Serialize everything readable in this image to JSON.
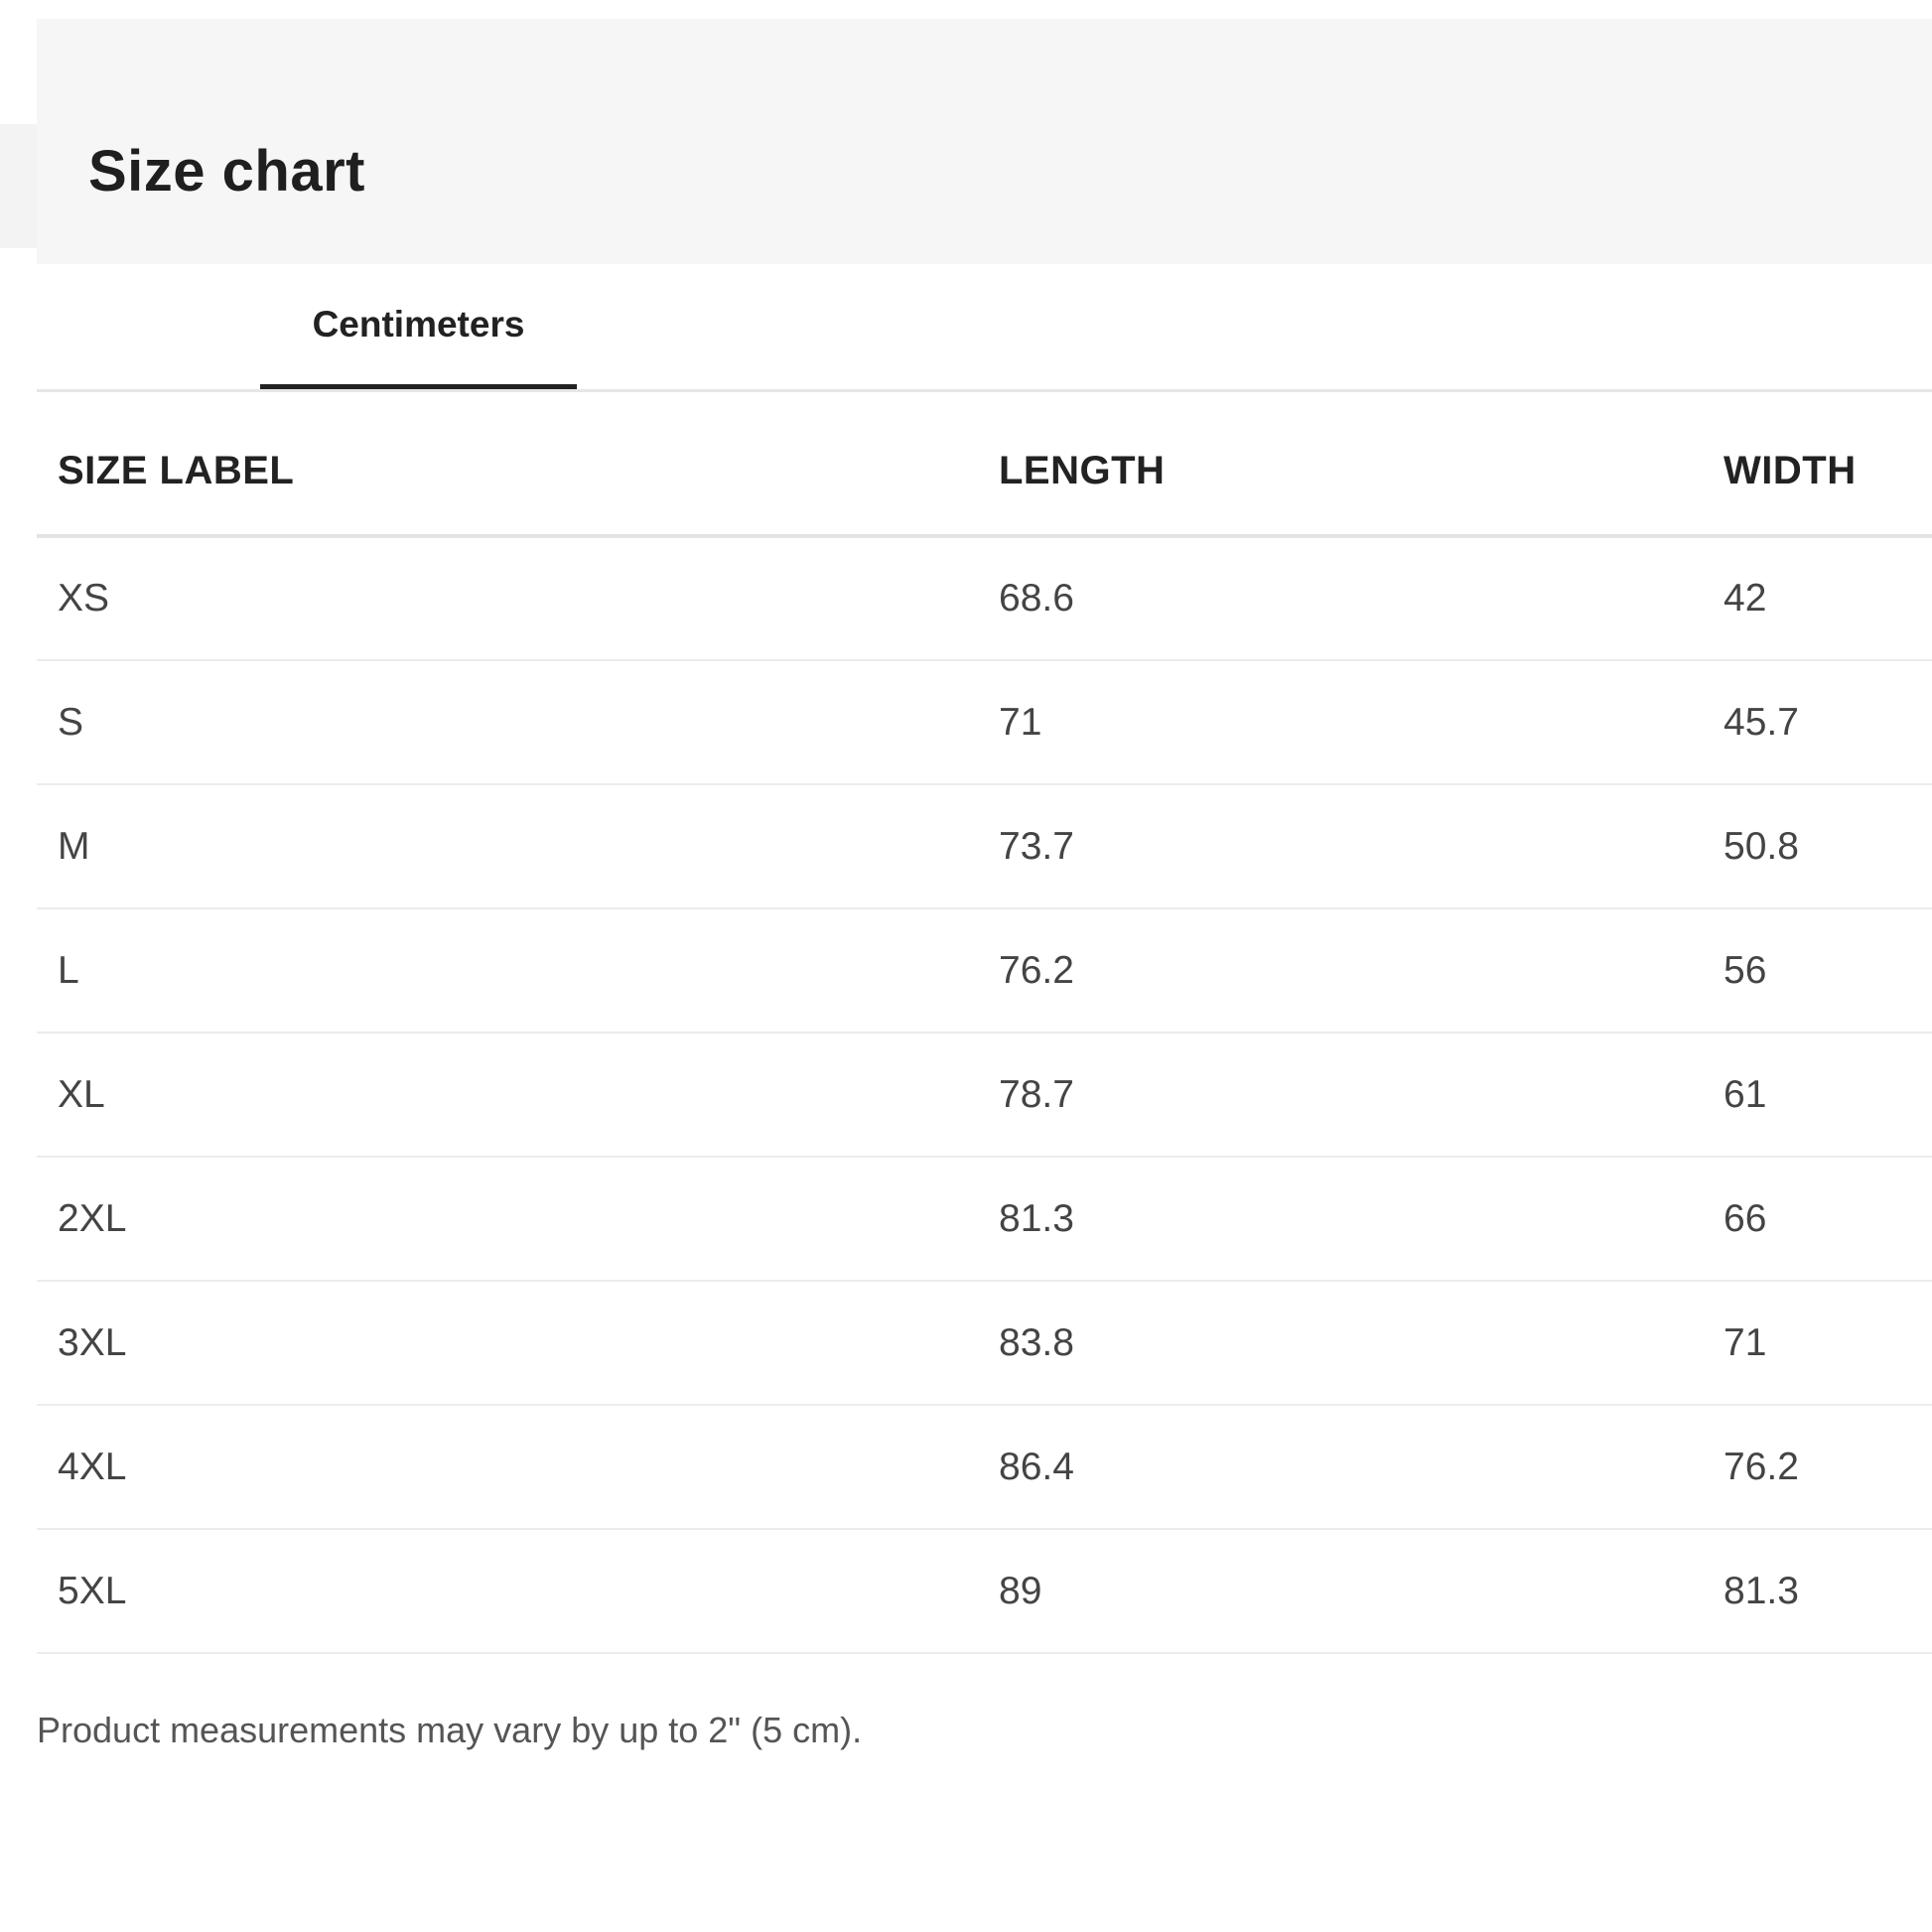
{
  "title": "Size chart",
  "tabs": [
    {
      "label": "Centimeters",
      "active": true
    }
  ],
  "table": {
    "headers": [
      "SIZE LABEL",
      "LENGTH",
      "WIDTH"
    ],
    "rows": [
      [
        "XS",
        "68.6",
        "42"
      ],
      [
        "S",
        "71",
        "45.7"
      ],
      [
        "M",
        "73.7",
        "50.8"
      ],
      [
        "L",
        "76.2",
        "56"
      ],
      [
        "XL",
        "78.7",
        "61"
      ],
      [
        "2XL",
        "81.3",
        "66"
      ],
      [
        "3XL",
        "83.8",
        "71"
      ],
      [
        "4XL",
        "86.4",
        "76.2"
      ],
      [
        "5XL",
        "89",
        "81.3"
      ]
    ]
  },
  "note": "Product measurements may vary by up to 2\" (5 cm)."
}
